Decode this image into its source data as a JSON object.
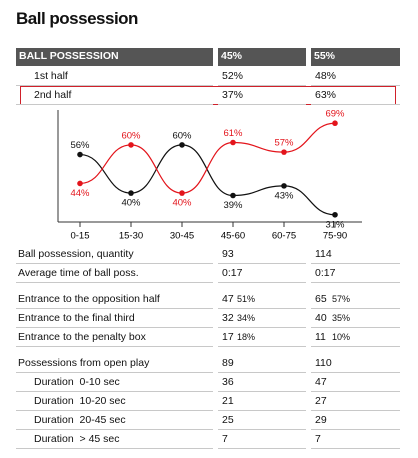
{
  "header": {
    "title": "Ball possession"
  },
  "possession_table": {
    "header": [
      "BALL POSSESSION",
      "45%",
      "55%"
    ],
    "rows": [
      [
        "1st half",
        "52%",
        "48%"
      ],
      [
        "2nd half",
        "37%",
        "63%"
      ]
    ]
  },
  "chart_data": {
    "type": "line",
    "categories": [
      "0-15",
      "15-30",
      "30-45",
      "45-60",
      "60-75",
      "75-90"
    ],
    "ylim": [
      28,
      72
    ],
    "series": [
      {
        "color": "#111111",
        "values": [
          56,
          40,
          60,
          39,
          43,
          31
        ],
        "value_labels": [
          "56%",
          "40%",
          "60%",
          "39%",
          "43%",
          "31%"
        ]
      },
      {
        "color": "#e3141b",
        "values": [
          44,
          60,
          40,
          61,
          57,
          69
        ],
        "value_labels": [
          "44%",
          "60%",
          "40%",
          "61%",
          "57%",
          "69%"
        ]
      }
    ]
  },
  "stats": {
    "groups": [
      [
        {
          "label": "Ball possession, quantity",
          "home": "93",
          "away": "114"
        },
        {
          "label": "Average time of ball poss.",
          "home": "0:17",
          "away": "0:17"
        }
      ],
      [
        {
          "label": "Entrance to the opposition half",
          "home": "47",
          "home_share": "51%",
          "away": "65",
          "away_share": "57%"
        },
        {
          "label": "Entrance to the final third",
          "home": "32",
          "home_share": "34%",
          "away": "40",
          "away_share": "35%"
        },
        {
          "label": "Entrance to the penalty box",
          "home": "17",
          "home_share": "18%",
          "away": "11",
          "away_share": "10%"
        }
      ],
      [
        {
          "label": "Possessions from open play",
          "home": "89",
          "away": "110"
        },
        {
          "label": "Duration  0-10 sec",
          "home": "36",
          "away": "47"
        },
        {
          "label": "Duration  10-20 sec",
          "home": "21",
          "away": "27"
        },
        {
          "label": "Duration  20-45 sec",
          "home": "25",
          "away": "29"
        },
        {
          "label": "Duration  > 45 sec",
          "home": "7",
          "away": "7"
        }
      ]
    ]
  }
}
